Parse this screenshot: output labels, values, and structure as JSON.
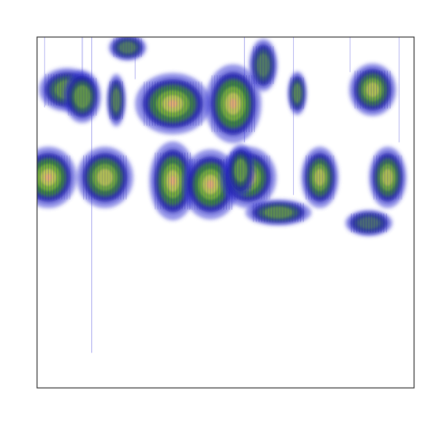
{
  "chart_data": {
    "type": "heatmap",
    "title": "",
    "xlabel": "",
    "ylabel": "",
    "axes_ticks": "none",
    "grid": false,
    "legend": "none",
    "xlim": [
      0,
      100
    ],
    "ylim": [
      0,
      100
    ],
    "colormap": [
      "#ffffff",
      "#3a3ad6",
      "#1a1aa8",
      "#3f8f2a",
      "#7fb43a",
      "#c9c85a",
      "#e8a878"
    ],
    "blobs": [
      {
        "x": 8,
        "y": 85,
        "w": 6,
        "h": 5,
        "intensity": 0.55
      },
      {
        "x": 12,
        "y": 83,
        "w": 4,
        "h": 6,
        "intensity": 0.6
      },
      {
        "x": 3,
        "y": 60,
        "w": 6,
        "h": 7,
        "intensity": 0.85
      },
      {
        "x": 18,
        "y": 60,
        "w": 6,
        "h": 7,
        "intensity": 0.75
      },
      {
        "x": 21,
        "y": 82,
        "w": 2,
        "h": 6,
        "intensity": 0.4
      },
      {
        "x": 36,
        "y": 81,
        "w": 8,
        "h": 7,
        "intensity": 0.8
      },
      {
        "x": 36,
        "y": 59,
        "w": 5,
        "h": 9,
        "intensity": 0.8
      },
      {
        "x": 46,
        "y": 58,
        "w": 6,
        "h": 8,
        "intensity": 0.85
      },
      {
        "x": 52,
        "y": 81,
        "w": 6,
        "h": 9,
        "intensity": 0.85
      },
      {
        "x": 56,
        "y": 60,
        "w": 6,
        "h": 7,
        "intensity": 0.8
      },
      {
        "x": 64,
        "y": 50,
        "w": 7,
        "h": 3,
        "intensity": 0.5
      },
      {
        "x": 54,
        "y": 62,
        "w": 3,
        "h": 6,
        "intensity": 0.6
      },
      {
        "x": 69,
        "y": 84,
        "w": 2,
        "h": 5,
        "intensity": 0.45
      },
      {
        "x": 75,
        "y": 60,
        "w": 4,
        "h": 7,
        "intensity": 0.7
      },
      {
        "x": 89,
        "y": 85,
        "w": 5,
        "h": 6,
        "intensity": 0.7
      },
      {
        "x": 93,
        "y": 60,
        "w": 4,
        "h": 7,
        "intensity": 0.7
      },
      {
        "x": 24,
        "y": 97,
        "w": 4,
        "h": 3,
        "intensity": 0.35
      },
      {
        "x": 60,
        "y": 92,
        "w": 3,
        "h": 6,
        "intensity": 0.35
      },
      {
        "x": 88,
        "y": 47,
        "w": 5,
        "h": 3,
        "intensity": 0.25
      }
    ],
    "streaks": [
      {
        "x": 14.5,
        "y0": 10,
        "y1": 100,
        "intensity": 0.35
      },
      {
        "x": 2,
        "y0": 80,
        "y1": 100,
        "intensity": 0.3
      },
      {
        "x": 12,
        "y0": 86,
        "y1": 100,
        "intensity": 0.4
      },
      {
        "x": 26,
        "y0": 88,
        "y1": 100,
        "intensity": 0.3
      },
      {
        "x": 55,
        "y0": 70,
        "y1": 100,
        "intensity": 0.35
      },
      {
        "x": 68,
        "y0": 55,
        "y1": 100,
        "intensity": 0.3
      },
      {
        "x": 83,
        "y0": 90,
        "y1": 100,
        "intensity": 0.3
      },
      {
        "x": 96,
        "y0": 70,
        "y1": 100,
        "intensity": 0.3
      }
    ]
  }
}
